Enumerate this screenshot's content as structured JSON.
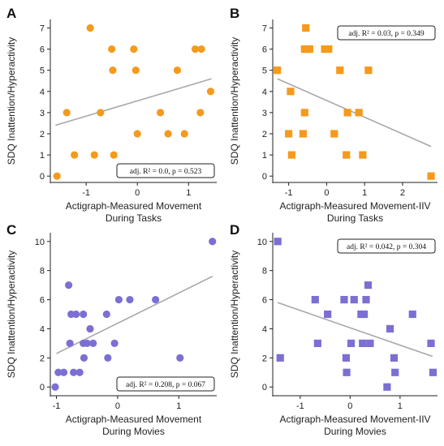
{
  "chart_data": [
    {
      "panel": "A",
      "type": "scatter",
      "marker": "circle",
      "color": "#f59a1c",
      "xlabel": "Actigraph-Measured Movement",
      "xlabel2": "During Tasks",
      "ylabel": "SDQ Inattention/Hyperactivity",
      "xlim": [
        -1.7,
        1.55
      ],
      "ylim": [
        -0.3,
        7.4
      ],
      "xticks": [
        -1,
        0,
        1
      ],
      "yticks": [
        0,
        1,
        2,
        3,
        4,
        5,
        6,
        7
      ],
      "annotation": "adj. R² = 0.0, p = 0.523",
      "ann_pos": "bottom-right",
      "fit": [
        [
          -1.6,
          2.4
        ],
        [
          1.45,
          4.6
        ]
      ],
      "points": [
        [
          -1.57,
          0
        ],
        [
          -1.38,
          3
        ],
        [
          -1.23,
          1
        ],
        [
          -0.92,
          7
        ],
        [
          -0.84,
          1
        ],
        [
          -0.72,
          3
        ],
        [
          -0.5,
          6
        ],
        [
          -0.48,
          5
        ],
        [
          -0.46,
          1
        ],
        [
          -0.07,
          6
        ],
        [
          -0.03,
          5
        ],
        [
          0.0,
          2
        ],
        [
          0.45,
          3
        ],
        [
          0.6,
          2
        ],
        [
          0.78,
          5
        ],
        [
          0.92,
          2
        ],
        [
          1.13,
          6
        ],
        [
          1.25,
          6
        ],
        [
          1.23,
          3
        ],
        [
          1.43,
          4
        ]
      ]
    },
    {
      "panel": "B",
      "type": "scatter",
      "marker": "square",
      "color": "#f59a1c",
      "xlabel": "Actigraph-Measured Movement-IIV",
      "xlabel2": "During Tasks",
      "ylabel": "SDQ Inattention/Hyperactivity",
      "xlim": [
        -1.42,
        2.92
      ],
      "ylim": [
        -0.3,
        7.4
      ],
      "xticks": [
        -1,
        0,
        1,
        2
      ],
      "yticks": [
        0,
        1,
        2,
        3,
        4,
        5,
        6,
        7
      ],
      "annotation": "adj. R² = 0.03, p = 0.349",
      "ann_pos": "top-right",
      "fit": [
        [
          -1.3,
          4.6
        ],
        [
          2.75,
          1.4
        ]
      ],
      "points": [
        [
          -1.3,
          5
        ],
        [
          -1.0,
          2
        ],
        [
          -0.95,
          4
        ],
        [
          -0.92,
          1
        ],
        [
          -0.62,
          2
        ],
        [
          -0.58,
          3
        ],
        [
          -0.58,
          6
        ],
        [
          -0.55,
          7
        ],
        [
          -0.52,
          6
        ],
        [
          -0.45,
          6
        ],
        [
          -0.05,
          6
        ],
        [
          0.05,
          6
        ],
        [
          0.2,
          2
        ],
        [
          0.35,
          5
        ],
        [
          0.52,
          1
        ],
        [
          0.55,
          3
        ],
        [
          0.85,
          3
        ],
        [
          0.95,
          1
        ],
        [
          1.1,
          5
        ],
        [
          2.75,
          0
        ]
      ]
    },
    {
      "panel": "C",
      "type": "scatter",
      "marker": "circle",
      "color": "#7b6fd4",
      "xlabel": "Actigraph-Measured Movement",
      "xlabel2": "During Movies",
      "ylabel": "SDQ Inattention/Hyperactivity",
      "xlim": [
        -1.1,
        1.62
      ],
      "ylim": [
        -0.6,
        10.6
      ],
      "xticks": [
        -1,
        0,
        1
      ],
      "yticks": [
        0,
        2,
        4,
        6,
        8,
        10
      ],
      "annotation": "adj. R² = 0.208, p = 0.067",
      "ann_pos": "bottom-right",
      "fit": [
        [
          -1.0,
          2.3
        ],
        [
          1.55,
          7.6
        ]
      ],
      "points": [
        [
          -1.02,
          0
        ],
        [
          -0.97,
          1
        ],
        [
          -0.88,
          1
        ],
        [
          -0.8,
          7
        ],
        [
          -0.78,
          3
        ],
        [
          -0.76,
          5
        ],
        [
          -0.72,
          1
        ],
        [
          -0.68,
          5
        ],
        [
          -0.62,
          1
        ],
        [
          -0.56,
          5
        ],
        [
          -0.56,
          3
        ],
        [
          -0.55,
          2
        ],
        [
          -0.5,
          3
        ],
        [
          -0.45,
          4
        ],
        [
          -0.4,
          3
        ],
        [
          -0.18,
          5
        ],
        [
          -0.16,
          2
        ],
        [
          -0.05,
          3
        ],
        [
          0.02,
          6
        ],
        [
          0.2,
          6
        ],
        [
          0.62,
          6
        ],
        [
          1.02,
          2
        ],
        [
          1.55,
          10
        ]
      ]
    },
    {
      "panel": "D",
      "type": "scatter",
      "marker": "square",
      "color": "#7b6fd4",
      "xlabel": "Actigraph-Measured Movement-IIV",
      "xlabel2": "During Movies",
      "ylabel": "SDQ Inattention/Hyperactivity",
      "xlim": [
        -1.55,
        1.75
      ],
      "ylim": [
        -0.6,
        10.6
      ],
      "xticks": [
        -1,
        0,
        1
      ],
      "yticks": [
        0,
        2,
        4,
        6,
        8,
        10
      ],
      "annotation": "adj. R² = 0.042, p = 0.304",
      "ann_pos": "top-right",
      "fit": [
        [
          -1.45,
          5.8
        ],
        [
          1.65,
          2.1
        ]
      ],
      "points": [
        [
          -1.45,
          10
        ],
        [
          -1.4,
          2
        ],
        [
          -0.7,
          6
        ],
        [
          -0.65,
          3
        ],
        [
          -0.45,
          5
        ],
        [
          -0.12,
          6
        ],
        [
          -0.08,
          2
        ],
        [
          -0.07,
          1
        ],
        [
          0.02,
          3
        ],
        [
          0.08,
          6
        ],
        [
          0.22,
          5
        ],
        [
          0.25,
          3
        ],
        [
          0.28,
          5
        ],
        [
          0.32,
          6
        ],
        [
          0.36,
          7
        ],
        [
          0.4,
          3
        ],
        [
          0.74,
          0
        ],
        [
          0.8,
          4
        ],
        [
          0.88,
          2
        ],
        [
          0.9,
          1
        ],
        [
          1.25,
          5
        ],
        [
          1.62,
          3
        ],
        [
          1.66,
          1
        ]
      ]
    }
  ]
}
